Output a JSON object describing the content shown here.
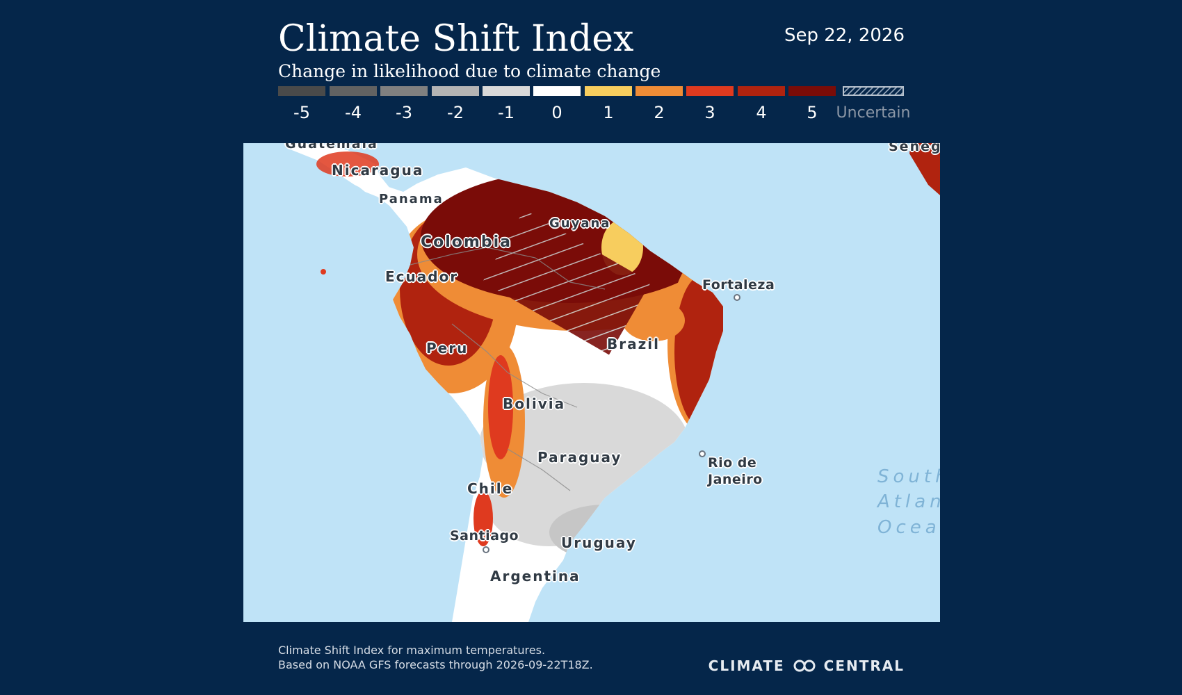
{
  "header": {
    "title": "Climate Shift Index",
    "subtitle": "Change in likelihood due to climate change",
    "date": "Sep 22, 2026"
  },
  "legend": {
    "items": [
      {
        "label": "-5",
        "color": "#4a4a4a"
      },
      {
        "label": "-4",
        "color": "#626262"
      },
      {
        "label": "-3",
        "color": "#808080"
      },
      {
        "label": "-2",
        "color": "#b4b4b4"
      },
      {
        "label": "-1",
        "color": "#d9d9d9"
      },
      {
        "label": "0",
        "color": "#ffffff"
      },
      {
        "label": "1",
        "color": "#f7cd5e"
      },
      {
        "label": "2",
        "color": "#ef8c36"
      },
      {
        "label": "3",
        "color": "#df3a1f"
      },
      {
        "label": "4",
        "color": "#b0230f"
      },
      {
        "label": "5",
        "color": "#7a0c08"
      }
    ],
    "uncertain_label": "Uncertain"
  },
  "map": {
    "ocean_color": "#bfe3f7",
    "labels": {
      "guatemala": "Guatemala",
      "nicaragua": "Nicaragua",
      "panama": "Panama",
      "guyana": "Guyana",
      "colombia": "Colombia",
      "ecuador": "Ecuador",
      "fortaleza": "Fortaleza",
      "peru": "Peru",
      "brazil": "Brazil",
      "bolivia": "Bolivia",
      "paraguay": "Paraguay",
      "rio": "Rio de\nJaneiro",
      "chile": "Chile",
      "santiago": "Santiago",
      "uruguay": "Uruguay",
      "argentina": "Argentina",
      "senegal": "Senegal",
      "ocean": "South\nAtlantic\nOcean"
    }
  },
  "footer": {
    "line1": "Climate Shift Index for maximum temperatures.",
    "line2": "Based on NOAA GFS forecasts through 2026-09-22T18Z.",
    "brand_left": "CLIMATE",
    "brand_right": "CENTRAL"
  }
}
